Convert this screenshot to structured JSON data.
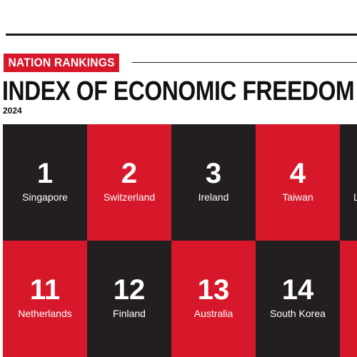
{
  "header": {
    "tag": "NATION RANKINGS",
    "title": "INDEX OF ECONOMIC FREEDOM",
    "year": "2024"
  },
  "colors": {
    "red": "#d7182a",
    "black": "#231f20",
    "text": "#ffffff"
  },
  "row1": [
    {
      "rank": "1",
      "country": "Singapore",
      "color": "black"
    },
    {
      "rank": "2",
      "country": "Switzerland",
      "color": "red"
    },
    {
      "rank": "3",
      "country": "Ireland",
      "color": "black"
    },
    {
      "rank": "4",
      "country": "Taiwan",
      "color": "red"
    },
    {
      "rank": "",
      "country": "L",
      "color": "black"
    }
  ],
  "row2": [
    {
      "rank": "11",
      "country": "Netherlands",
      "color": "red"
    },
    {
      "rank": "12",
      "country": "Finland",
      "color": "black"
    },
    {
      "rank": "13",
      "country": "Australia",
      "color": "red"
    },
    {
      "rank": "14",
      "country": "South Korea",
      "color": "black"
    },
    {
      "rank": "",
      "country": "",
      "color": "red"
    }
  ]
}
